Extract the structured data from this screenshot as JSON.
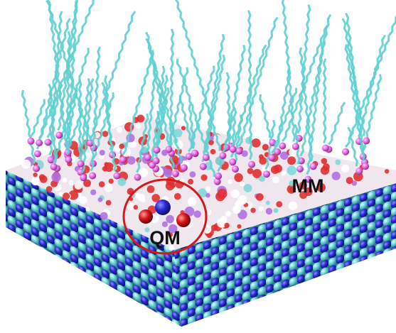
{
  "labels": {
    "qm": "QM",
    "mm": "MM"
  }
}
